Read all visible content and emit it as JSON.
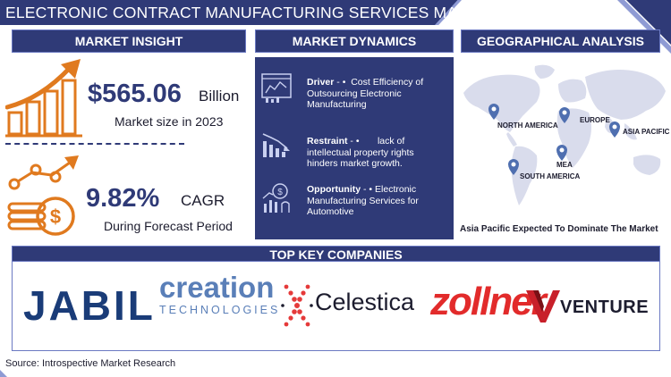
{
  "title": "ELECTRONIC CONTRACT MANUFACTURING SERVICES MARKET REPORT",
  "sections": {
    "insight": "MARKET INSIGHT",
    "dynamics": "MARKET DYNAMICS",
    "geo": "GEOGRAPHICAL ANALYSIS",
    "companies": "TOP KEY COMPANIES"
  },
  "insight": {
    "market_size_value": "$565.06",
    "market_size_unit": "Billion",
    "market_size_caption": "Market size in 2023",
    "cagr_value": "9.82%",
    "cagr_unit": "CAGR",
    "cagr_caption": "During Forecast Period"
  },
  "dynamics": {
    "driver_label": "Driver",
    "driver_text": "Cost Efficiency of Outsourcing Electronic Manufacturing",
    "restraint_label": "Restraint",
    "restraint_text": "lack of intellectual property rights hinders market growth.",
    "opportunity_label": "Opportunity",
    "opportunity_text": "Electronic Manufacturing Services for Automotive"
  },
  "geo": {
    "regions": [
      "NORTH AMERICA",
      "EUROPE",
      "ASIA PACIFIC",
      "MEA",
      "SOUTH AMERICA"
    ],
    "caption": "Asia Pacific Expected To Dominate The Market"
  },
  "companies": {
    "jabil": "JABIL",
    "creation_top": "creation",
    "creation_bottom": "TECHNOLOGIES",
    "celestica": "Celestica",
    "zollner": "zollner",
    "venture": "VENTURE"
  },
  "footer": "Source: Introspective Market Research",
  "colors": {
    "navy": "#2f3a77",
    "orange": "#e07a1f",
    "accent": "#6b79c2"
  }
}
